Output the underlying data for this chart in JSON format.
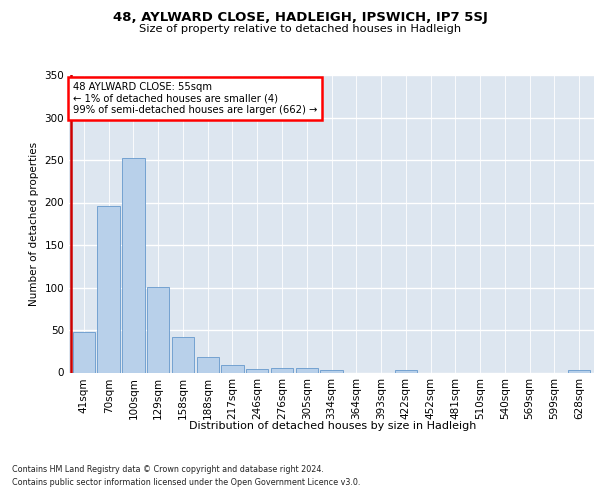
{
  "title_line1": "48, AYLWARD CLOSE, HADLEIGH, IPSWICH, IP7 5SJ",
  "title_line2": "Size of property relative to detached houses in Hadleigh",
  "xlabel": "Distribution of detached houses by size in Hadleigh",
  "ylabel": "Number of detached properties",
  "bar_color": "#b8d0ea",
  "bar_edge_color": "#6699cc",
  "annotation_line1": "48 AYLWARD CLOSE: 55sqm",
  "annotation_line2": "← 1% of detached houses are smaller (4)",
  "annotation_line3": "99% of semi-detached houses are larger (662) →",
  "categories": [
    "41sqm",
    "70sqm",
    "100sqm",
    "129sqm",
    "158sqm",
    "188sqm",
    "217sqm",
    "246sqm",
    "276sqm",
    "305sqm",
    "334sqm",
    "364sqm",
    "393sqm",
    "422sqm",
    "452sqm",
    "481sqm",
    "510sqm",
    "540sqm",
    "569sqm",
    "599sqm",
    "628sqm"
  ],
  "values": [
    48,
    196,
    252,
    101,
    42,
    18,
    9,
    4,
    5,
    5,
    3,
    0,
    0,
    3,
    0,
    0,
    0,
    0,
    0,
    0,
    3
  ],
  "ylim": [
    0,
    350
  ],
  "yticks": [
    0,
    50,
    100,
    150,
    200,
    250,
    300,
    350
  ],
  "marker_color": "#cc0000",
  "bg_color": "#dde6f0",
  "footer_line1": "Contains HM Land Registry data © Crown copyright and database right 2024.",
  "footer_line2": "Contains public sector information licensed under the Open Government Licence v3.0."
}
